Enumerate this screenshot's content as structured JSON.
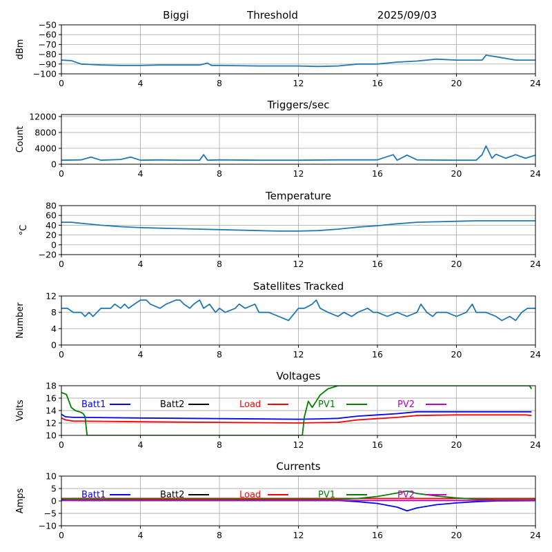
{
  "header": {
    "site": "Biggi",
    "title": "Threshold",
    "date": "2025/09/03"
  },
  "colors": {
    "series": "#1f77b4",
    "batt1": "#0000ff",
    "batt2": "#000000",
    "load": "#ff0000",
    "pv1": "#008000",
    "pv2": "#bf00bf",
    "grid": "#b0b0b0"
  },
  "chart_data": [
    {
      "id": "threshold",
      "type": "line",
      "title": "",
      "ylabel": "dBm",
      "xlim": [
        0,
        24
      ],
      "ylim": [
        -100,
        -50
      ],
      "xticks": [
        "0",
        "4",
        "8",
        "12",
        "16",
        "20",
        "24"
      ],
      "yticks": [
        "-50",
        "-60",
        "-70",
        "-80",
        "-90",
        "-100"
      ],
      "grid": true,
      "series": [
        {
          "x": [
            0,
            0.5,
            1.0,
            2,
            3,
            4,
            5,
            6,
            7,
            7.4,
            7.6,
            8,
            10,
            12,
            13,
            14,
            15,
            16,
            17,
            18,
            19,
            20,
            21,
            21.3,
            21.5,
            22,
            23,
            24
          ],
          "y": [
            -86,
            -86.5,
            -90,
            -91,
            -91.5,
            -91.5,
            -91,
            -91,
            -91,
            -89,
            -91.5,
            -91.5,
            -92,
            -92,
            -92.5,
            -92,
            -90,
            -90,
            -88,
            -87,
            -85,
            -86,
            -86,
            -86,
            -81,
            -82.5,
            -86,
            -86
          ]
        }
      ]
    },
    {
      "id": "triggers",
      "type": "line",
      "title": "Triggers/sec",
      "ylabel": "Count",
      "xlim": [
        0,
        24
      ],
      "ylim": [
        0,
        12500
      ],
      "xticks": [
        "0",
        "4",
        "8",
        "12",
        "16",
        "20",
        "24"
      ],
      "yticks": [
        "0",
        "4000",
        "8000",
        "12000"
      ],
      "grid": true,
      "series": [
        {
          "x": [
            0,
            1,
            1.5,
            2,
            3,
            3.5,
            4,
            5,
            6,
            7,
            7.2,
            7.4,
            8,
            10,
            12,
            14,
            16,
            16.8,
            17,
            17.5,
            18,
            20,
            21,
            21.3,
            21.5,
            21.8,
            22,
            22.5,
            23,
            23.5,
            24
          ],
          "y": [
            1000,
            1100,
            1800,
            1000,
            1200,
            1800,
            1000,
            1100,
            1000,
            1000,
            2400,
            1000,
            1100,
            1000,
            1000,
            1100,
            1100,
            2400,
            1000,
            2300,
            1100,
            1000,
            1000,
            2400,
            4600,
            1500,
            2500,
            1500,
            2400,
            1500,
            2300
          ]
        }
      ]
    },
    {
      "id": "temperature",
      "type": "line",
      "title": "Temperature",
      "ylabel": "°C",
      "xlim": [
        0,
        24
      ],
      "ylim": [
        -20,
        80
      ],
      "xticks": [
        "0",
        "4",
        "8",
        "12",
        "16",
        "20",
        "24"
      ],
      "yticks": [
        "-20",
        "0",
        "20",
        "40",
        "60",
        "80"
      ],
      "grid": true,
      "series": [
        {
          "x": [
            0,
            0.5,
            1,
            2,
            3,
            4,
            5,
            6,
            7,
            8,
            9,
            10,
            11,
            12,
            13,
            14,
            15,
            16,
            17,
            18,
            19,
            20,
            21,
            22,
            23,
            24
          ],
          "y": [
            46,
            46,
            44,
            40,
            37,
            35,
            34,
            33,
            32,
            31,
            30,
            29,
            28,
            28,
            29,
            32,
            36,
            39,
            43,
            46,
            47,
            48,
            49,
            49,
            49,
            49
          ]
        }
      ]
    },
    {
      "id": "satellites",
      "type": "line",
      "title": "Satellites Tracked",
      "ylabel": "Number",
      "xlim": [
        0,
        24
      ],
      "ylim": [
        0,
        12
      ],
      "xticks": [
        "0",
        "4",
        "8",
        "12",
        "16",
        "20",
        "24"
      ],
      "yticks": [
        "0",
        "4",
        "8",
        "12"
      ],
      "grid": true,
      "series": [
        {
          "x": [
            0,
            0.3,
            0.6,
            1,
            1.2,
            1.4,
            1.6,
            1.8,
            2,
            2.5,
            2.7,
            3,
            3.2,
            3.4,
            3.7,
            4,
            4.3,
            4.5,
            5,
            5.3,
            5.8,
            6,
            6.2,
            6.5,
            6.7,
            7,
            7.2,
            7.5,
            7.8,
            8,
            8.3,
            8.8,
            9,
            9.3,
            9.8,
            10,
            10.5,
            11,
            11.5,
            12,
            12.3,
            12.7,
            12.9,
            13.1,
            13.5,
            14,
            14.3,
            14.7,
            15,
            15.5,
            15.8,
            16,
            16.5,
            17,
            17.5,
            18,
            18.2,
            18.5,
            18.8,
            19,
            19.5,
            20,
            20.5,
            20.8,
            21,
            21.5,
            22,
            22.3,
            22.7,
            23,
            23.3,
            23.6,
            24
          ],
          "y": [
            9,
            9,
            8,
            8,
            7,
            8,
            7,
            8,
            9,
            9,
            10,
            9,
            10,
            9,
            10,
            11,
            11,
            10,
            9,
            10,
            11,
            11,
            10,
            9,
            10,
            11,
            9,
            10,
            8,
            9,
            8,
            9,
            10,
            9,
            10,
            8,
            8,
            7,
            6,
            9,
            9,
            10,
            11,
            9,
            8,
            7,
            8,
            7,
            8,
            9,
            8,
            8,
            7,
            8,
            7,
            8,
            10,
            8,
            7,
            8,
            8,
            7,
            8,
            10,
            8,
            8,
            7,
            6,
            7,
            6,
            8,
            9,
            9
          ]
        }
      ]
    },
    {
      "id": "voltages",
      "type": "line",
      "title": "Voltages",
      "ylabel": "Volts",
      "xlim": [
        0,
        24
      ],
      "ylim": [
        10,
        18
      ],
      "xticks": [
        "0",
        "4",
        "8",
        "12",
        "16",
        "20",
        "24"
      ],
      "yticks": [
        "10",
        "12",
        "14",
        "16",
        "18"
      ],
      "grid": true,
      "legend": "top",
      "series": [
        {
          "name": "Batt1",
          "color_key": "batt1",
          "x": [
            0,
            0.2,
            0.6,
            1,
            4,
            8,
            12,
            13,
            14,
            15,
            16,
            17,
            18,
            20,
            23.5,
            23.8
          ],
          "y": [
            13.4,
            13.0,
            12.9,
            12.9,
            12.8,
            12.7,
            12.6,
            12.65,
            12.75,
            13.1,
            13.3,
            13.5,
            13.8,
            13.8,
            13.8,
            13.8
          ]
        },
        {
          "name": "Batt2",
          "color_key": "batt2",
          "x": [],
          "y": []
        },
        {
          "name": "Load",
          "color_key": "load",
          "x": [
            0,
            0.2,
            0.6,
            1,
            4,
            8,
            12,
            13,
            14,
            15,
            16,
            17,
            18,
            20,
            23.5,
            23.8
          ],
          "y": [
            12.8,
            12.5,
            12.3,
            12.3,
            12.2,
            12.1,
            12.0,
            12.05,
            12.1,
            12.5,
            12.7,
            12.9,
            13.2,
            13.3,
            13.3,
            13.2
          ]
        },
        {
          "name": "PV1",
          "color_key": "pv1",
          "x": [
            0,
            0.25,
            0.5,
            0.7,
            1.0,
            1.1,
            1.2,
            1.3,
            12.2,
            12.3,
            12.5,
            12.7,
            13.1,
            13.5,
            14.0,
            14.5,
            23.7,
            23.8
          ],
          "y": [
            16.9,
            16.6,
            14.5,
            14.0,
            13.7,
            13.5,
            13.0,
            10,
            10,
            13.0,
            15.5,
            14.5,
            16.5,
            17.5,
            18,
            18,
            18,
            17.5
          ]
        },
        {
          "name": "PV2",
          "color_key": "pv2",
          "x": [],
          "y": []
        }
      ]
    },
    {
      "id": "currents",
      "type": "line",
      "title": "Currents",
      "ylabel": "Amps",
      "xlim": [
        0,
        24
      ],
      "ylim": [
        -10,
        10
      ],
      "xticks": [
        "0",
        "4",
        "8",
        "12",
        "16",
        "20",
        "24"
      ],
      "yticks": [
        "-10",
        "-5",
        "0",
        "5",
        "10"
      ],
      "grid": true,
      "legend": "top",
      "series": [
        {
          "name": "Batt1",
          "color_key": "batt1",
          "x": [
            0,
            1,
            4,
            8,
            12,
            14,
            15,
            16,
            17,
            17.5,
            18,
            19,
            20,
            21,
            22,
            24
          ],
          "y": [
            0.3,
            0.2,
            0.2,
            0.2,
            0.2,
            0.2,
            -0.3,
            -1.0,
            -2.5,
            -4.0,
            -2.8,
            -1.5,
            -0.8,
            -0.3,
            0,
            0.1
          ]
        },
        {
          "name": "Batt2",
          "color_key": "batt2",
          "x": [],
          "y": []
        },
        {
          "name": "Load",
          "color_key": "load",
          "x": [
            0,
            24
          ],
          "y": [
            1.0,
            1.0
          ]
        },
        {
          "name": "PV1",
          "color_key": "pv1",
          "x": [
            0,
            1,
            4,
            8,
            12,
            14,
            15,
            16,
            17,
            17.5,
            18,
            19,
            20,
            21,
            22,
            24
          ],
          "y": [
            0.8,
            0.7,
            0.6,
            0.6,
            0.6,
            0.6,
            1.0,
            1.8,
            3.2,
            4.0,
            3.0,
            2.0,
            1.2,
            0.7,
            0.5,
            0.5
          ]
        },
        {
          "name": "PV2",
          "color_key": "pv2",
          "x": [
            0,
            24
          ],
          "y": [
            0.2,
            0.2
          ]
        }
      ]
    }
  ]
}
